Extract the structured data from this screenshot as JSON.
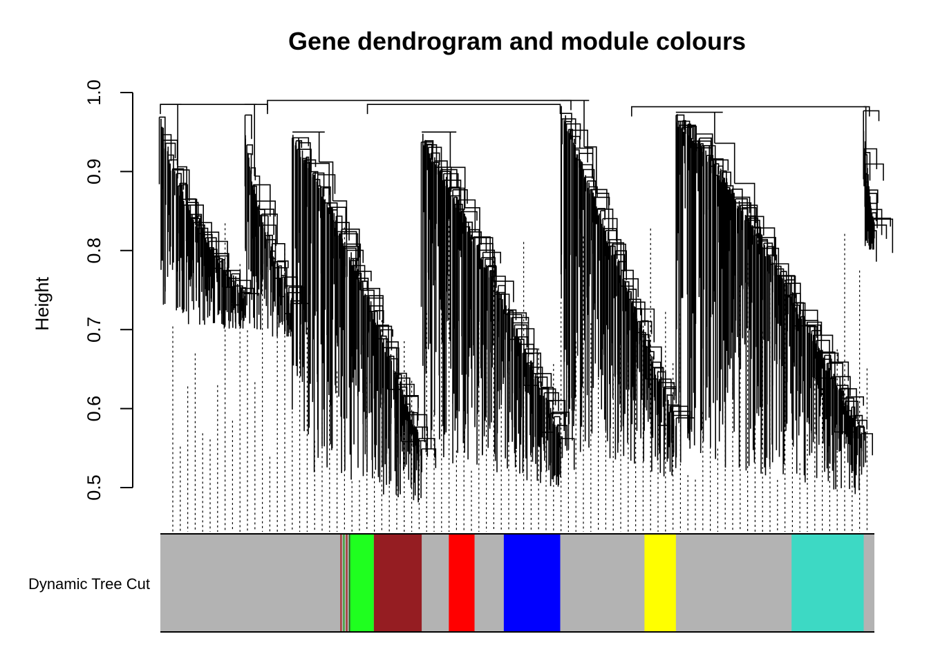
{
  "chart_data": {
    "type": "dendrogram",
    "title": "Gene dendrogram and module colours",
    "ylabel": "Height",
    "ylim": [
      0.5,
      1.0
    ],
    "yticks": [
      "0.5",
      "0.6",
      "0.7",
      "0.8",
      "0.9",
      "1.0"
    ],
    "colour_band": {
      "label": "Dynamic Tree Cut",
      "base_color": "#b3b3b3",
      "modules": [
        {
          "color": "brown",
          "hex": "#a52a2a",
          "span": [
            0.252,
            0.254
          ]
        },
        {
          "color": "green",
          "hex": "#33a02c",
          "span": [
            0.256,
            0.258
          ]
        },
        {
          "color": "brown",
          "hex": "#a52a2a",
          "span": [
            0.26,
            0.262
          ]
        },
        {
          "color": "darkgreen",
          "hex": "#1a6d1a",
          "span": [
            0.264,
            0.266
          ]
        },
        {
          "color": "green",
          "hex": "#1fff1f",
          "span": [
            0.266,
            0.299
          ]
        },
        {
          "color": "brown",
          "hex": "#951d22",
          "span": [
            0.299,
            0.366
          ]
        },
        {
          "color": "red",
          "hex": "#ff0000",
          "span": [
            0.404,
            0.44
          ]
        },
        {
          "color": "blue",
          "hex": "#0000ff",
          "span": [
            0.481,
            0.56
          ]
        },
        {
          "color": "yellow",
          "hex": "#ffff00",
          "span": [
            0.678,
            0.722
          ]
        },
        {
          "color": "turquoise",
          "hex": "#3dd9c4",
          "span": [
            0.884,
            0.985
          ]
        }
      ]
    },
    "clusters": [
      {
        "span": [
          0.0,
          0.118
        ],
        "top": 0.985,
        "floor": 0.71,
        "steep": 0.6
      },
      {
        "span": [
          0.118,
          0.185
        ],
        "top": 0.985,
        "floor": 0.7,
        "steep": 0.55
      },
      {
        "span": [
          0.185,
          0.366
        ],
        "top": 0.95,
        "floor": 0.49,
        "steep": 1.2
      },
      {
        "span": [
          0.366,
          0.56
        ],
        "top": 0.95,
        "floor": 0.51,
        "steep": 1.1
      },
      {
        "span": [
          0.56,
          0.722
        ],
        "top": 0.99,
        "floor": 0.52,
        "steep": 1.0
      },
      {
        "span": [
          0.722,
          0.985
        ],
        "top": 0.975,
        "floor": 0.5,
        "steep": 1.2
      },
      {
        "span": [
          0.985,
          1.0
        ],
        "top": 0.982,
        "floor": 0.81,
        "steep": 0.5
      }
    ],
    "top_merges": [
      {
        "x1": 0.15,
        "x2": 0.575,
        "height": 0.99
      },
      {
        "x1": 0.29,
        "x2": 0.56,
        "height": 0.985
      },
      {
        "x1": 0.66,
        "x2": 0.993,
        "height": 0.982
      },
      {
        "x1": 0.0,
        "x2": 0.15,
        "height": 0.985
      }
    ]
  }
}
